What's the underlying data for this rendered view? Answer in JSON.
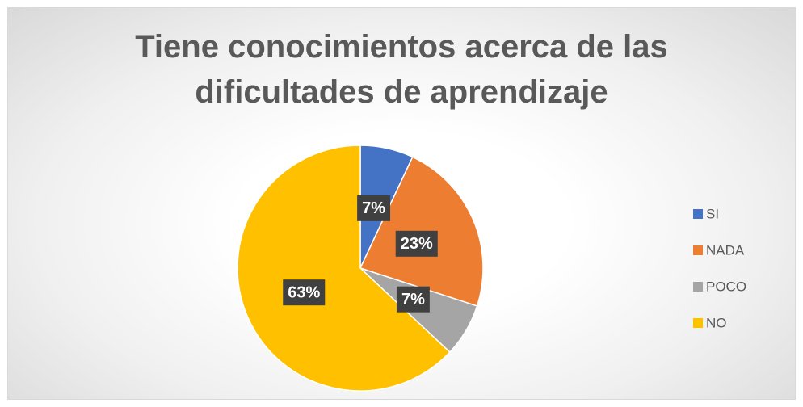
{
  "chart_data": {
    "type": "pie",
    "title": "Tiene conocimientos acerca de las dificultades de aprendizaje",
    "categories": [
      "SI",
      "NADA",
      "POCO",
      "NO"
    ],
    "values": [
      7,
      23,
      7,
      63
    ],
    "value_labels": [
      "7%",
      "23%",
      "7%",
      "63%"
    ],
    "colors": [
      "#4472c4",
      "#ed7d31",
      "#a5a5a5",
      "#ffc000"
    ],
    "legend": "right"
  }
}
